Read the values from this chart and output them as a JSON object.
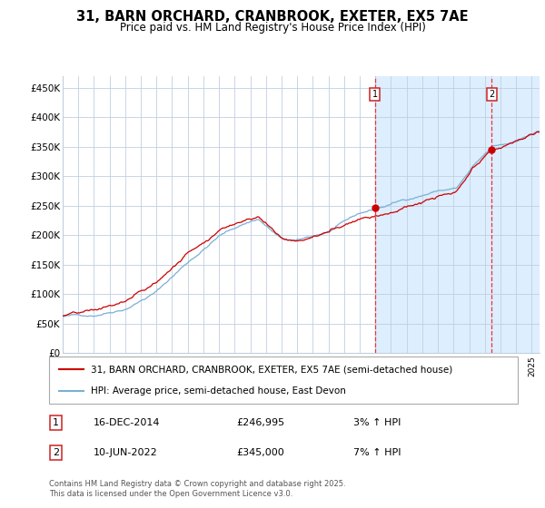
{
  "title": "31, BARN ORCHARD, CRANBROOK, EXETER, EX5 7AE",
  "subtitle": "Price paid vs. HM Land Registry's House Price Index (HPI)",
  "legend_line1": "31, BARN ORCHARD, CRANBROOK, EXETER, EX5 7AE (semi-detached house)",
  "legend_line2": "HPI: Average price, semi-detached house, East Devon",
  "annotation1_date": "16-DEC-2014",
  "annotation1_price": "£246,995",
  "annotation1_hpi": "3% ↑ HPI",
  "annotation1_year": 2014.96,
  "annotation1_value": 246995,
  "annotation2_date": "10-JUN-2022",
  "annotation2_price": "£345,000",
  "annotation2_hpi": "7% ↑ HPI",
  "annotation2_year": 2022.44,
  "annotation2_value": 345000,
  "ylabel_ticks": [
    "£0",
    "£50K",
    "£100K",
    "£150K",
    "£200K",
    "£250K",
    "£300K",
    "£350K",
    "£400K",
    "£450K"
  ],
  "ytick_values": [
    0,
    50000,
    100000,
    150000,
    200000,
    250000,
    300000,
    350000,
    400000,
    450000
  ],
  "xlim": [
    1995,
    2025.5
  ],
  "ylim": [
    0,
    470000
  ],
  "red_line_color": "#cc0000",
  "blue_line_color": "#7ab0d4",
  "shade_color": "#ddeeff",
  "grid_color": "#c0cfe0",
  "bg_color": "#ffffff",
  "dashed_line_color": "#ee3333",
  "footer": "Contains HM Land Registry data © Crown copyright and database right 2025.\nThis data is licensed under the Open Government Licence v3.0.",
  "title_fontsize": 10.5,
  "subtitle_fontsize": 8.5,
  "tick_fontsize": 7.5,
  "legend_fontsize": 7.5,
  "table_fontsize": 8,
  "footer_fontsize": 6
}
